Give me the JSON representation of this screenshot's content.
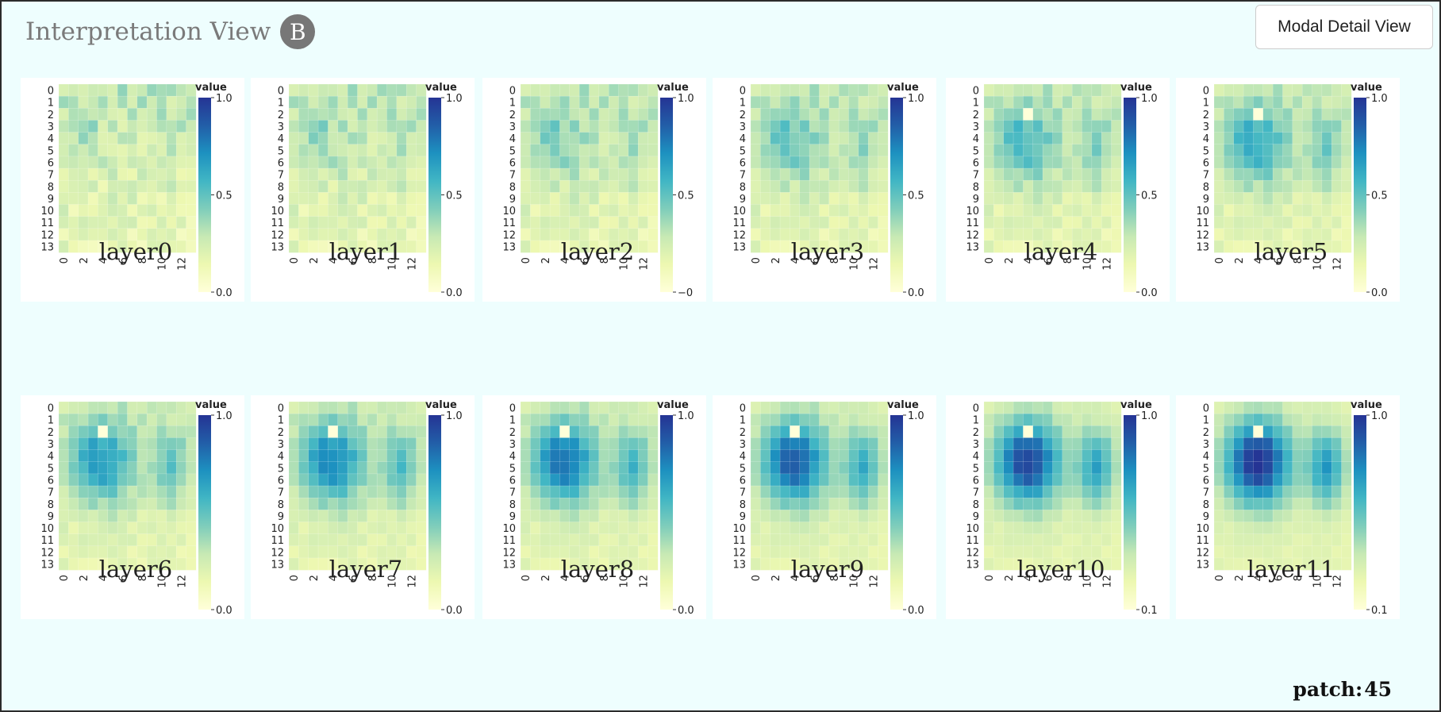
{
  "header": {
    "title": "Interpretation View",
    "badge": "B",
    "modal_button": "Modal Detail View"
  },
  "footer": {
    "patch_label": "patch:",
    "patch_value": "45"
  },
  "colorscale": {
    "stops": [
      "#ffffd9",
      "#edf8b1",
      "#c7e9b4",
      "#7fcdbb",
      "#41b6c4",
      "#1d91c0",
      "#225ea8",
      "#253494"
    ],
    "legend_title": "value"
  },
  "chart_data": {
    "type": "heatmap",
    "grid_size": 14,
    "x_ticks": [
      "0",
      "2",
      "4",
      "6",
      "8",
      "10",
      "12"
    ],
    "y_ticks": [
      "0",
      "1",
      "2",
      "3",
      "4",
      "5",
      "6",
      "7",
      "8",
      "9",
      "10",
      "11",
      "12",
      "13"
    ],
    "selected_patch": {
      "row": 2,
      "col": 4
    },
    "layers": [
      {
        "name": "layer0",
        "legend_ticks": [
          "1.0",
          "0.5",
          "0.0"
        ],
        "intensity": 0
      },
      {
        "name": "layer1",
        "legend_ticks": [
          "1.0",
          "0.5",
          "0.0"
        ],
        "intensity": 1
      },
      {
        "name": "layer2",
        "legend_ticks": [
          "1.0",
          "0.5",
          "−0"
        ],
        "intensity": 2
      },
      {
        "name": "layer3",
        "legend_ticks": [
          "1.0",
          "0.5",
          "0.0"
        ],
        "intensity": 3
      },
      {
        "name": "layer4",
        "legend_ticks": [
          "1.0",
          "0.5",
          "0.0"
        ],
        "intensity": 4
      },
      {
        "name": "layer5",
        "legend_ticks": [
          "1.0",
          "0.5",
          "0.0"
        ],
        "intensity": 5
      },
      {
        "name": "layer6",
        "legend_ticks": [
          "1.0",
          "0.0"
        ],
        "intensity": 6
      },
      {
        "name": "layer7",
        "legend_ticks": [
          "1.0",
          "0.0"
        ],
        "intensity": 7
      },
      {
        "name": "layer8",
        "legend_ticks": [
          "1.0",
          "0.0"
        ],
        "intensity": 8
      },
      {
        "name": "layer9",
        "legend_ticks": [
          "1.0",
          "0.0"
        ],
        "intensity": 9
      },
      {
        "name": "layer10",
        "legend_ticks": [
          "1.0",
          "0.1"
        ],
        "intensity": 10
      },
      {
        "name": "layer11",
        "legend_ticks": [
          "1.0",
          "0.1"
        ],
        "intensity": 11
      }
    ]
  }
}
